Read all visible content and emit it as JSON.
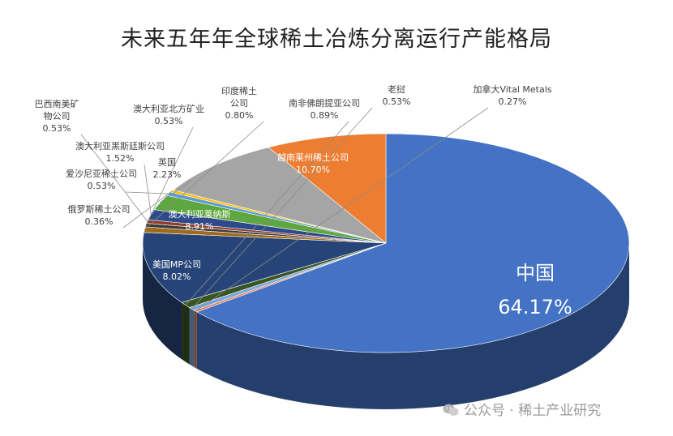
{
  "chart_data": {
    "type": "pie",
    "title": "未来五年年全球稀土冶炼分离运行产能格局",
    "slices": [
      {
        "label": "中国",
        "value": 64.17,
        "display": "64.17%",
        "color": "#4472c4"
      },
      {
        "label": "加拿大Vital Metals",
        "value": 0.27,
        "display": "0.27%",
        "color": "#e07a5f"
      },
      {
        "label": "老挝",
        "value": 0.53,
        "display": "0.53%",
        "color": "#7aa6d8"
      },
      {
        "label": "南非佛朗提亚公司",
        "value": 0.89,
        "display": "0.89%",
        "color": "#375623"
      },
      {
        "label": "越南莱州稀土公司",
        "value": 10.7,
        "display": "10.70%",
        "color": "#264478"
      },
      {
        "label": "印度稀土公司",
        "value": 0.8,
        "display": "0.80%",
        "color": "#9e6a1c"
      },
      {
        "label": "澳大利亚北方矿业",
        "value": 0.53,
        "display": "0.53%",
        "color": "#3a3a3a"
      },
      {
        "label": "巴西南美矿物公司",
        "value": 0.53,
        "display": "0.53%",
        "color": "#8e3b2a"
      },
      {
        "label": "澳大利亚黑斯廷斯公司",
        "value": 1.52,
        "display": "1.52%",
        "color": "#2f4a8a"
      },
      {
        "label": "英国",
        "value": 2.23,
        "display": "2.23%",
        "color": "#5ea63f"
      },
      {
        "label": "爱沙尼亚稀土公司",
        "value": 0.53,
        "display": "0.53%",
        "color": "#5b9bd5"
      },
      {
        "label": "俄罗斯稀土公司",
        "value": 0.36,
        "display": "0.36%",
        "color": "#ffc000"
      },
      {
        "label": "澳大利亚莱纳斯",
        "value": 8.91,
        "display": "8.91%",
        "color": "#a5a5a5"
      },
      {
        "label": "美国MP公司",
        "value": 8.02,
        "display": "8.02%",
        "color": "#ed7d31"
      }
    ],
    "legend": "none"
  },
  "watermark": {
    "text": "公众号 · 稀土产业研究"
  }
}
